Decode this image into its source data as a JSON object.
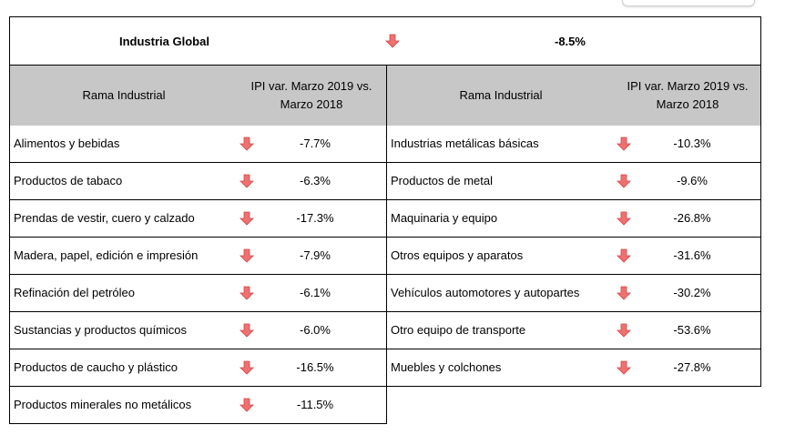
{
  "global": {
    "label": "Industria Global",
    "value": "-8.5%",
    "trend_icon": "down-arrow-icon"
  },
  "header": {
    "left_col1": "Rama Industrial",
    "left_col2_line1": "IPI  var. Marzo 2019 vs.",
    "left_col2_line2": "Marzo 2018",
    "right_col1": "Rama Industrial",
    "right_col2_line1": "IPI  var. Marzo 2019 vs.",
    "right_col2_line2": "Marzo 2018"
  },
  "colors": {
    "arrow": "#f07070",
    "header_bg": "#c7c7c7",
    "border": "#000000"
  },
  "left_rows": [
    {
      "name": "Alimentos y bebidas",
      "value": "-7.7%"
    },
    {
      "name": "Productos de tabaco",
      "value": "-6.3%"
    },
    {
      "name": "Prendas de vestir, cuero y calzado",
      "value": "-17.3%"
    },
    {
      "name": "Madera, papel, edición e impresión",
      "value": "-7.9%"
    },
    {
      "name": "Refinación del petróleo",
      "value": "-6.1%"
    },
    {
      "name": "Sustancias y productos químicos",
      "value": "-6.0%"
    },
    {
      "name": "Productos de caucho y plástico",
      "value": "-16.5%"
    },
    {
      "name": "Productos minerales no metálicos",
      "value": "-11.5%"
    }
  ],
  "right_rows": [
    {
      "name": "Industrias metálicas básicas",
      "value": "-10.3%"
    },
    {
      "name": "Productos de metal",
      "value": "-9.6%"
    },
    {
      "name": "Maquinaria y equipo",
      "value": "-26.8%"
    },
    {
      "name": "Otros equipos y aparatos",
      "value": "-31.6%"
    },
    {
      "name": "Vehículos automotores  y autopartes",
      "value": "-30.2%"
    },
    {
      "name": "Otro equipo de transporte",
      "value": "-53.6%"
    },
    {
      "name": "Muebles y colchones",
      "value": "-27.8%"
    }
  ]
}
